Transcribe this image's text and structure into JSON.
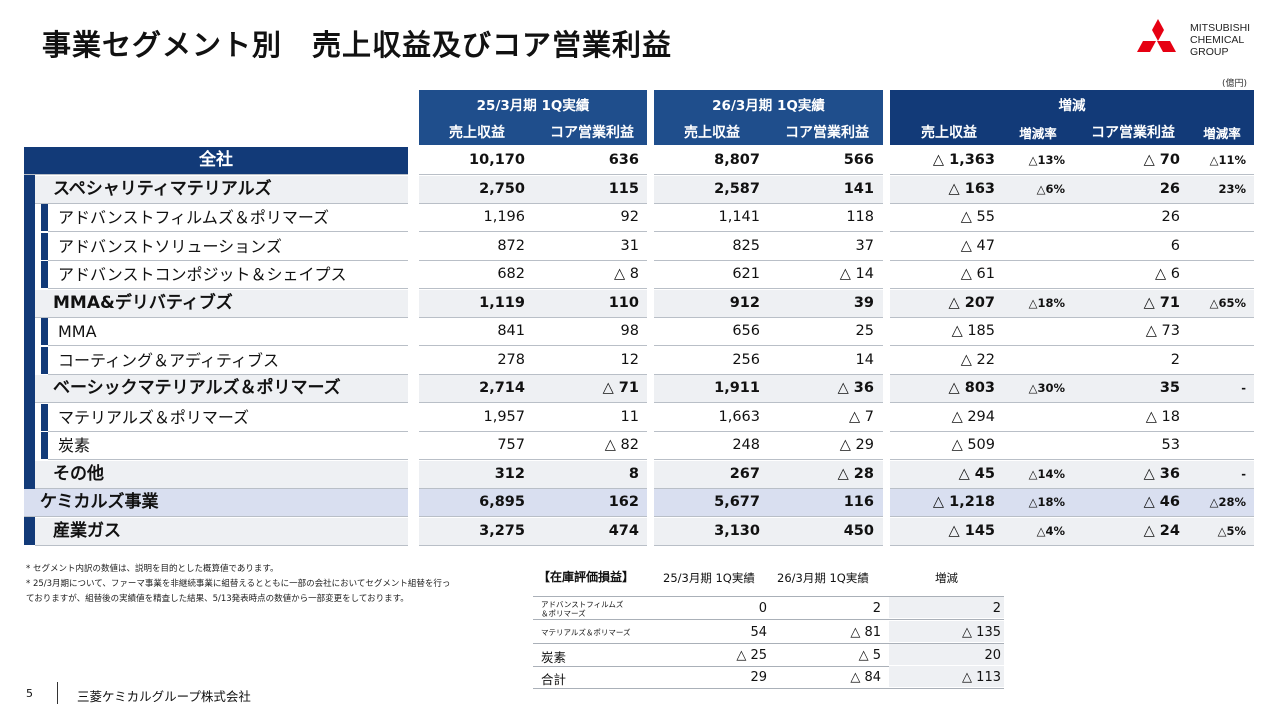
{
  "title": "事業セグメント別　売上収益及びコア営業利益",
  "logo": {
    "line1": "MITSUBISHI",
    "line2": "CHEMICAL",
    "line3": "GROUP"
  },
  "unit": "(億円)",
  "headers": {
    "period1": "25/3月期 1Q実績",
    "period2": "26/3月期 1Q実績",
    "change": "増減",
    "revenue": "売上収益",
    "core_op": "コア営業利益",
    "rate": "増減率"
  },
  "rows": [
    {
      "label": "全社",
      "r1": "10,170",
      "c1": "636",
      "r2": "8,807",
      "c2": "566",
      "dr": "△ 1,363",
      "drp": "△13%",
      "dc": "△ 70",
      "dcp": "△11%"
    },
    {
      "label": "スペシャリティマテリアルズ",
      "r1": "2,750",
      "c1": "115",
      "r2": "2,587",
      "c2": "141",
      "dr": "△ 163",
      "drp": "△6%",
      "dc": "26",
      "dcp": "23%"
    },
    {
      "label": "アドバンストフィルムズ＆ポリマーズ",
      "r1": "1,196",
      "c1": "92",
      "r2": "1,141",
      "c2": "118",
      "dr": "△ 55",
      "drp": "",
      "dc": "26",
      "dcp": ""
    },
    {
      "label": "アドバンストソリューションズ",
      "r1": "872",
      "c1": "31",
      "r2": "825",
      "c2": "37",
      "dr": "△ 47",
      "drp": "",
      "dc": "6",
      "dcp": ""
    },
    {
      "label": "アドバンストコンポジット＆シェイプス",
      "r1": "682",
      "c1": "△ 8",
      "r2": "621",
      "c2": "△ 14",
      "dr": "△ 61",
      "drp": "",
      "dc": "△ 6",
      "dcp": ""
    },
    {
      "label": "MMA&デリバティブズ",
      "r1": "1,119",
      "c1": "110",
      "r2": "912",
      "c2": "39",
      "dr": "△ 207",
      "drp": "△18%",
      "dc": "△ 71",
      "dcp": "△65%"
    },
    {
      "label": "MMA",
      "r1": "841",
      "c1": "98",
      "r2": "656",
      "c2": "25",
      "dr": "△ 185",
      "drp": "",
      "dc": "△ 73",
      "dcp": ""
    },
    {
      "label": "コーティング＆アディティブス",
      "r1": "278",
      "c1": "12",
      "r2": "256",
      "c2": "14",
      "dr": "△ 22",
      "drp": "",
      "dc": "2",
      "dcp": ""
    },
    {
      "label": "ベーシックマテリアルズ＆ポリマーズ",
      "r1": "2,714",
      "c1": "△ 71",
      "r2": "1,911",
      "c2": "△ 36",
      "dr": "△ 803",
      "drp": "△30%",
      "dc": "35",
      "dcp": "-"
    },
    {
      "label": "マテリアルズ＆ポリマーズ",
      "r1": "1,957",
      "c1": "11",
      "r2": "1,663",
      "c2": "△ 7",
      "dr": "△ 294",
      "drp": "",
      "dc": "△ 18",
      "dcp": ""
    },
    {
      "label": "炭素",
      "r1": "757",
      "c1": "△ 82",
      "r2": "248",
      "c2": "△ 29",
      "dr": "△ 509",
      "drp": "",
      "dc": "53",
      "dcp": ""
    },
    {
      "label": "その他",
      "r1": "312",
      "c1": "8",
      "r2": "267",
      "c2": "△ 28",
      "dr": "△ 45",
      "drp": "△14%",
      "dc": "△ 36",
      "dcp": "-"
    },
    {
      "label": "ケミカルズ事業",
      "r1": "6,895",
      "c1": "162",
      "r2": "5,677",
      "c2": "116",
      "dr": "△ 1,218",
      "drp": "△18%",
      "dc": "△ 46",
      "dcp": "△28%"
    },
    {
      "label": "産業ガス",
      "r1": "3,275",
      "c1": "474",
      "r2": "3,130",
      "c2": "450",
      "dr": "△ 145",
      "drp": "△4%",
      "dc": "△ 24",
      "dcp": "△5%"
    }
  ],
  "notes": [
    "* セグメント内訳の数値は、説明を目的とした概算値であります。",
    "* 25/3月期について、ファーマ事業を非継続事業に組替えるとともに一部の会社においてセグメント組替を行っ",
    "ておりますが、組替後の実績値を精査した結果、5/13発表時点の数値から一部変更をしております。"
  ],
  "inventory": {
    "title": "【在庫評価損益】",
    "h1": "25/3月期 1Q実績",
    "h2": "26/3月期 1Q実績",
    "h3": "増減",
    "rows": [
      {
        "label1": "アドバンストフィルムズ",
        "label2": "＆ポリマーズ",
        "v1": "0",
        "v2": "2",
        "d": "2"
      },
      {
        "label1": "マテリアルズ＆ポリマーズ",
        "label2": "",
        "v1": "54",
        "v2": "△ 81",
        "d": "△ 135"
      },
      {
        "label1": "炭素",
        "label2": "",
        "v1": "△ 25",
        "v2": "△ 5",
        "d": "20"
      },
      {
        "label1": "合計",
        "label2": "",
        "v1": "29",
        "v2": "△ 84",
        "d": "△ 113"
      }
    ]
  },
  "footer": {
    "page": "5",
    "company": "三菱ケミカルグループ株式会社"
  }
}
